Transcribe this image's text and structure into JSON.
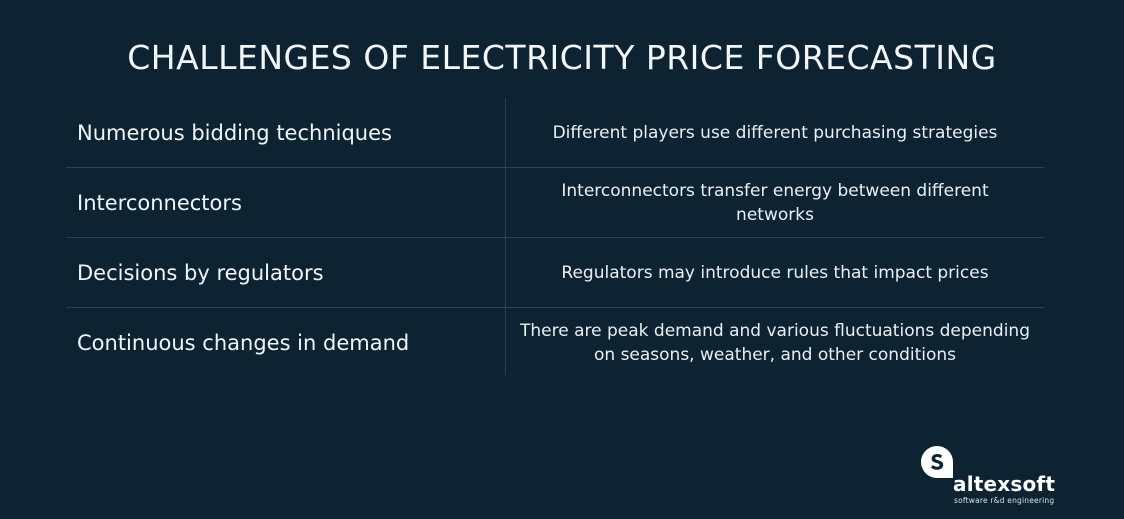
{
  "title": "CHALLENGES OF ELECTRICITY PRICE FORECASTING",
  "rows": [
    {
      "challenge": "Numerous bidding techniques",
      "description": "Different players use different purchasing strategies"
    },
    {
      "challenge": "Interconnectors",
      "description": "Interconnectors transfer energy between different networks"
    },
    {
      "challenge": "Decisions by regulators",
      "description": "Regulators may introduce rules that impact prices"
    },
    {
      "challenge": "Continuous changes in demand",
      "description": "There are peak demand and various fluctuations depending on seasons, weather, and other conditions"
    }
  ],
  "logo": {
    "name": "altexsoft",
    "tagline": "software r&d engineering"
  },
  "colors": {
    "background": "#0d2331",
    "text": "#f1f6f9",
    "divider": "#2c4251"
  }
}
